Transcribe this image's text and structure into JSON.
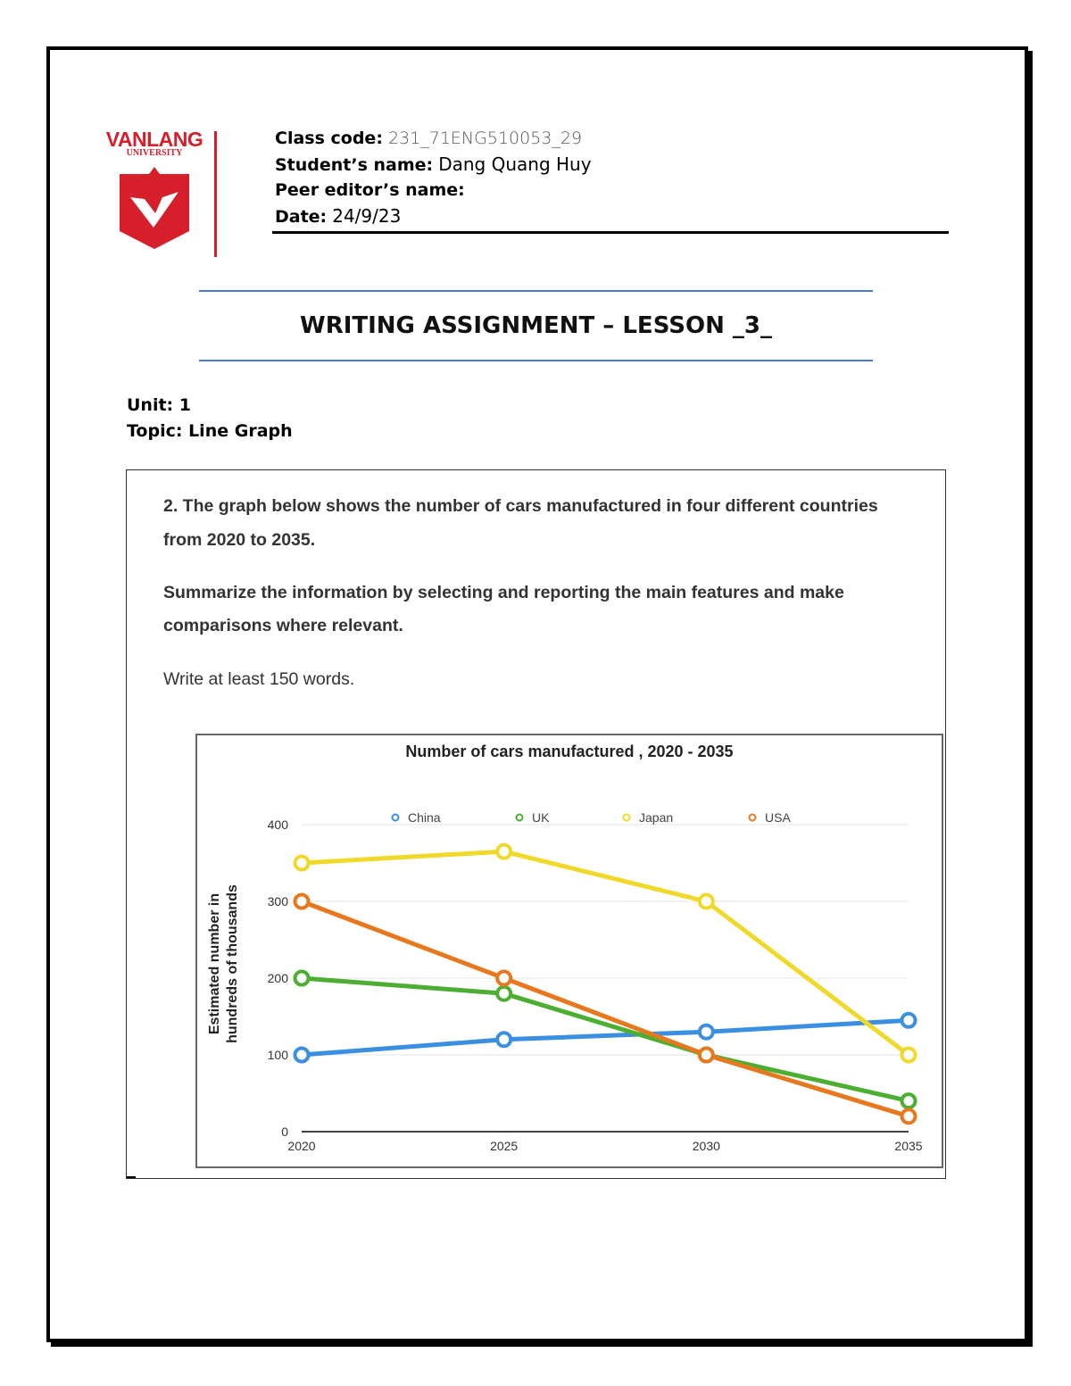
{
  "logo": {
    "name": "VANLANG",
    "sub": "UNIVERSITY",
    "color": "#d71f2c"
  },
  "header": {
    "class_code_label": "Class code:",
    "class_code": "231_71ENG510053_29",
    "student_label": "Student’s name:",
    "student": "Dang Quang Huy",
    "peer_label": "Peer editor’s name:",
    "date_label": "Date:",
    "date": "24/9/23"
  },
  "title": "WRITING ASSIGNMENT – LESSON _3_",
  "unit": "Unit: 1",
  "topic": "Topic: Line Graph",
  "task": {
    "line1": "2. The graph below shows the number of cars manufactured in four different countries",
    "line2": "from 2020 to 2035.",
    "line3": "Summarize the information by selecting and reporting the main features and make",
    "line4": "comparisons where relevant.",
    "line5": "Write at least 150 words."
  },
  "chart_data": {
    "type": "line",
    "title": "Number of cars manufactured , 2020 - 2035",
    "xlabel": "",
    "ylabel": "Estimated number in hundreds of thousands",
    "ylabel_lines": [
      "Estimated number in",
      "hundreds of thousands"
    ],
    "categories": [
      "2020",
      "2025",
      "2030",
      "2035"
    ],
    "ylim": [
      0,
      400
    ],
    "yticks": [
      "0",
      "100",
      "200",
      "300",
      "400"
    ],
    "grid": true,
    "legend": "top",
    "series": [
      {
        "name": "China",
        "color": "#3b8fe0",
        "values": [
          100,
          120,
          130,
          145
        ]
      },
      {
        "name": "UK",
        "color": "#4caf32",
        "values": [
          200,
          180,
          100,
          40
        ]
      },
      {
        "name": "Japan",
        "color": "#f0d92a",
        "values": [
          350,
          365,
          300,
          100
        ]
      },
      {
        "name": "USA",
        "color": "#e8781e",
        "values": [
          300,
          200,
          100,
          20
        ]
      }
    ]
  }
}
